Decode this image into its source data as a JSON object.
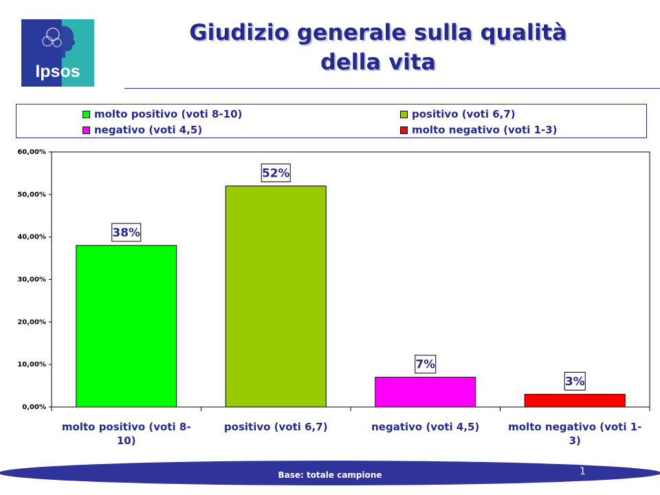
{
  "brand": {
    "logo_text": "Ipsos"
  },
  "title": {
    "line1": "Giudizio generale sulla qualità",
    "line2": "della vita"
  },
  "legend": [
    {
      "label": "molto positivo (voti 8-10)",
      "color": "#00ff00"
    },
    {
      "label": "positivo (voti 6,7)",
      "color": "#99cc00"
    },
    {
      "label": "negativo (voti 4,5)",
      "color": "#ff00ff"
    },
    {
      "label": "molto negativo (voti 1-3)",
      "color": "#ff0000"
    }
  ],
  "chart_data": {
    "type": "bar",
    "categories": [
      [
        "molto positivo (voti 8-",
        "10)"
      ],
      [
        "positivo (voti 6,7)"
      ],
      [
        "negativo (voti 4,5)"
      ],
      [
        "molto negativo (voti 1-",
        "3)"
      ]
    ],
    "values": [
      38,
      52,
      7,
      3
    ],
    "data_labels": [
      "38%",
      "52%",
      "7%",
      "3%"
    ],
    "colors": [
      "#00ff00",
      "#99cc00",
      "#ff00ff",
      "#ff0000"
    ],
    "ylim": [
      0,
      60
    ],
    "yticks": [
      0,
      10,
      20,
      30,
      40,
      50,
      60
    ],
    "ytick_labels": [
      "0,00%",
      "10,00%",
      "20,00%",
      "30,00%",
      "40,00%",
      "50,00%",
      "60,00%"
    ],
    "grid": false,
    "legend_position": "top"
  },
  "footer": {
    "base_text": "Base: totale campione",
    "page_number": "1"
  },
  "colors": {
    "navy": "#26288a",
    "teal": "#2fb3b0",
    "footer_band": "#30339a"
  }
}
